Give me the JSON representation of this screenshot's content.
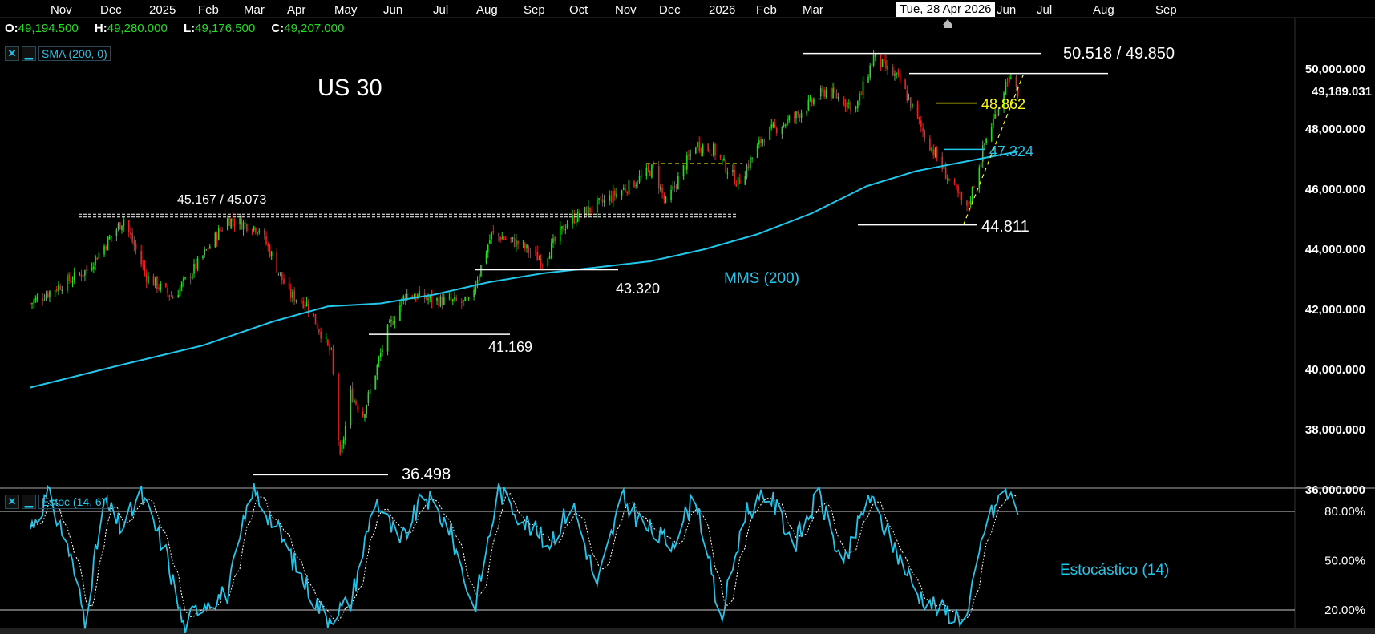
{
  "app": {
    "title": "US 30"
  },
  "time_axis": {
    "labels": [
      "Nov",
      "Dec",
      "2025",
      "Feb",
      "Mar",
      "Apr",
      "May",
      "Jun",
      "Jul",
      "Aug",
      "Sep",
      "Oct",
      "Nov",
      "Dec",
      "2026",
      "Feb",
      "Mar",
      "Jun",
      "Jul",
      "Aug",
      "Sep"
    ],
    "crosshair_date": "Tue, 28 Apr 2026"
  },
  "ohlc": {
    "o_label": "O:",
    "o_value": "49,194.500",
    "h_label": "H:",
    "h_value": "49,280.000",
    "l_label": "L:",
    "l_value": "49,176.500",
    "c_label": "C:",
    "c_value": "49,207.000"
  },
  "indicators": {
    "sma": {
      "close_icon": "✕",
      "minimize_icon": "▁",
      "label": "SMA (200, 0)"
    },
    "stoch": {
      "close_icon": "✕",
      "minimize_icon": "▁",
      "label": "Estoc (14, 6)"
    }
  },
  "annotations": {
    "hi_pair": "50.518 / 49.850",
    "level_48862": "48.862",
    "level_47324": "47.324",
    "level_44811": "44.811",
    "level_45167": "45.167 / 45.073",
    "level_43320": "43.320",
    "level_41169": "41.169",
    "level_36498": "36.498",
    "mms_label": "MMS (200)",
    "stoch_label": "Estocástico (14)"
  },
  "price_axis": {
    "current_price": "49,189.031",
    "labels": [
      "50,000.000",
      "48,000.000",
      "46,000.000",
      "44,000.000",
      "42,000.000",
      "40,000.000",
      "38,000.000",
      "36,000.000"
    ]
  },
  "stoch_axis": {
    "labels": [
      "80.00%",
      "50.00%",
      "20.00%"
    ]
  },
  "colors": {
    "up": "#22dd22",
    "down": "#ee2222",
    "sma": "#22c6ea",
    "yellow": "#ffff00",
    "white": "#ffffff",
    "grid": "#333333"
  },
  "chart_data": {
    "type": "candlestick",
    "title": "US 30",
    "x_start_date": "2024-10-15",
    "x_end_date": "2026-09-30",
    "price_ylim": [
      36000,
      51200
    ],
    "close_series": [
      [
        "2024-10-14",
        42200
      ],
      [
        "2024-10-31",
        42800
      ],
      [
        "2024-11-15",
        43300
      ],
      [
        "2024-12-06",
        45000
      ],
      [
        "2024-12-19",
        43100
      ],
      [
        "2025-01-03",
        42400
      ],
      [
        "2025-01-17",
        43500
      ],
      [
        "2025-02-03",
        45000
      ],
      [
        "2025-02-21",
        44700
      ],
      [
        "2025-03-10",
        42500
      ],
      [
        "2025-03-20",
        42200
      ],
      [
        "2025-04-03",
        40500
      ],
      [
        "2025-04-08",
        37000
      ],
      [
        "2025-04-14",
        39200
      ],
      [
        "2025-04-21",
        38500
      ],
      [
        "2025-05-05",
        41300
      ],
      [
        "2025-05-15",
        42500
      ],
      [
        "2025-06-02",
        42300
      ],
      [
        "2025-06-20",
        42200
      ],
      [
        "2025-07-03",
        44500
      ],
      [
        "2025-07-18",
        44200
      ],
      [
        "2025-08-01",
        43600
      ],
      [
        "2025-08-15",
        44900
      ],
      [
        "2025-09-02",
        45500
      ],
      [
        "2025-09-19",
        46100
      ],
      [
        "2025-10-03",
        46700
      ],
      [
        "2025-10-10",
        45500
      ],
      [
        "2025-10-27",
        47500
      ],
      [
        "2025-11-06",
        47300
      ],
      [
        "2025-11-20",
        46200
      ],
      [
        "2025-12-05",
        47800
      ],
      [
        "2025-12-22",
        48400
      ],
      [
        "2026-01-09",
        49300
      ],
      [
        "2026-01-26",
        48700
      ],
      [
        "2026-02-05",
        50400
      ],
      [
        "2026-02-20",
        49600
      ],
      [
        "2026-03-06",
        47800
      ],
      [
        "2026-03-20",
        46300
      ],
      [
        "2026-03-30",
        45300
      ],
      [
        "2026-04-09",
        47500
      ],
      [
        "2026-04-16",
        48600
      ],
      [
        "2026-04-22",
        49700
      ],
      [
        "2026-04-28",
        49207
      ]
    ],
    "sma_series": [
      [
        "2024-10-14",
        39400
      ],
      [
        "2024-12-01",
        40100
      ],
      [
        "2025-01-20",
        40800
      ],
      [
        "2025-03-01",
        41600
      ],
      [
        "2025-04-01",
        42100
      ],
      [
        "2025-05-01",
        42200
      ],
      [
        "2025-06-01",
        42500
      ],
      [
        "2025-07-01",
        42900
      ],
      [
        "2025-08-01",
        43200
      ],
      [
        "2025-09-01",
        43400
      ],
      [
        "2025-10-01",
        43600
      ],
      [
        "2025-11-01",
        44000
      ],
      [
        "2025-12-01",
        44500
      ],
      [
        "2026-01-01",
        45200
      ],
      [
        "2026-02-01",
        46100
      ],
      [
        "2026-03-01",
        46600
      ],
      [
        "2026-04-01",
        46950
      ],
      [
        "2026-04-28",
        47250
      ]
    ],
    "levels": [
      {
        "price": 50518,
        "label": "50.518 / 49.850"
      },
      {
        "price": 49850
      },
      {
        "price": 48862,
        "label": "48.862"
      },
      {
        "price": 47324,
        "label": "47.324"
      },
      {
        "price": 46850
      },
      {
        "price": 45167,
        "label": "45.167 / 45.073"
      },
      {
        "price": 45073
      },
      {
        "price": 44811,
        "label": "44.811"
      },
      {
        "price": 43320,
        "label": "43.320"
      },
      {
        "price": 41169,
        "label": "41.169"
      },
      {
        "price": 36498,
        "label": "36.498"
      }
    ],
    "stochastic": {
      "ylim": [
        0,
        100
      ],
      "levels": [
        80,
        20
      ],
      "k_series": [
        [
          "2024-10-14",
          70
        ],
        [
          "2024-10-24",
          90
        ],
        [
          "2024-11-04",
          60
        ],
        [
          "2024-11-14",
          15
        ],
        [
          "2024-11-25",
          85
        ],
        [
          "2024-12-05",
          70
        ],
        [
          "2024-12-16",
          90
        ],
        [
          "2024-12-30",
          55
        ],
        [
          "2025-01-09",
          10
        ],
        [
          "2025-01-20",
          25
        ],
        [
          "2025-02-03",
          30
        ],
        [
          "2025-02-17",
          94
        ],
        [
          "2025-03-03",
          70
        ],
        [
          "2025-03-17",
          40
        ],
        [
          "2025-03-31",
          15
        ],
        [
          "2025-04-14",
          25
        ],
        [
          "2025-04-28",
          88
        ],
        [
          "2025-05-12",
          60
        ],
        [
          "2025-05-26",
          90
        ],
        [
          "2025-06-09",
          70
        ],
        [
          "2025-06-23",
          20
        ],
        [
          "2025-07-07",
          93
        ],
        [
          "2025-07-21",
          75
        ],
        [
          "2025-08-04",
          60
        ],
        [
          "2025-08-18",
          85
        ],
        [
          "2025-09-01",
          35
        ],
        [
          "2025-09-15",
          88
        ],
        [
          "2025-09-29",
          70
        ],
        [
          "2025-10-13",
          60
        ],
        [
          "2025-10-27",
          90
        ],
        [
          "2025-11-10",
          12
        ],
        [
          "2025-11-24",
          80
        ],
        [
          "2025-12-08",
          90
        ],
        [
          "2025-12-22",
          60
        ],
        [
          "2026-01-05",
          90
        ],
        [
          "2026-01-19",
          45
        ],
        [
          "2026-02-02",
          90
        ],
        [
          "2026-02-16",
          60
        ],
        [
          "2026-03-02",
          30
        ],
        [
          "2026-03-16",
          20
        ],
        [
          "2026-03-30",
          15
        ],
        [
          "2026-04-09",
          70
        ],
        [
          "2026-04-20",
          93
        ],
        [
          "2026-04-28",
          82
        ]
      ]
    }
  }
}
